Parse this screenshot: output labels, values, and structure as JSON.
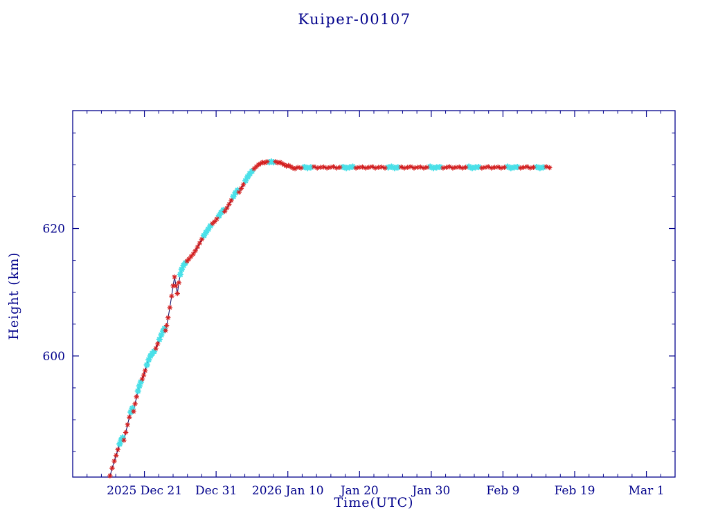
{
  "chart_data": {
    "type": "line",
    "title": "Kuiper-00107",
    "xlabel": "Time(UTC)",
    "ylabel": "Height (km)",
    "x_unit": "days, 0 = 2025 Dec 11",
    "xlim": [
      0,
      84
    ],
    "ylim": [
      581,
      638.5
    ],
    "grid": false,
    "x_ticks": [
      {
        "day": 10,
        "label": "2025 Dec 21"
      },
      {
        "day": 20,
        "label": "Dec 31"
      },
      {
        "day": 30,
        "label": "2026 Jan 10"
      },
      {
        "day": 40,
        "label": "Jan 20"
      },
      {
        "day": 50,
        "label": "Jan 30"
      },
      {
        "day": 60,
        "label": "Feb 9"
      },
      {
        "day": 70,
        "label": "Feb 19"
      },
      {
        "day": 80,
        "label": "Mar 1"
      }
    ],
    "x_minor_step": 2,
    "y_ticks": [
      {
        "value": 600,
        "label": "600"
      },
      {
        "value": 620,
        "label": "620"
      }
    ],
    "y_minor_step": 5,
    "colors": {
      "axis": "#00008b",
      "line": "#000060",
      "red_marker": "#d42020",
      "cyan_marker": "#4ae0e8"
    },
    "point_format": "[day, height_km, marker: 0=red-asterisk, 1=cyan-marker]",
    "points": [
      [
        5.2,
        581.2,
        0
      ],
      [
        5.5,
        582.4,
        0
      ],
      [
        5.8,
        583.5,
        0
      ],
      [
        6.05,
        584.4,
        0
      ],
      [
        6.3,
        585.3,
        0
      ],
      [
        6.55,
        586.2,
        1
      ],
      [
        6.75,
        586.8,
        1
      ],
      [
        6.95,
        587.2,
        1
      ],
      [
        7.15,
        586.8,
        0
      ],
      [
        7.4,
        588.0,
        0
      ],
      [
        7.65,
        589.2,
        0
      ],
      [
        7.9,
        590.4,
        0
      ],
      [
        8.1,
        591.2,
        1
      ],
      [
        8.3,
        591.8,
        1
      ],
      [
        8.5,
        591.3,
        0
      ],
      [
        8.7,
        592.5,
        0
      ],
      [
        8.9,
        593.6,
        0
      ],
      [
        9.1,
        594.5,
        1
      ],
      [
        9.3,
        595.3,
        1
      ],
      [
        9.5,
        595.9,
        1
      ],
      [
        9.7,
        596.4,
        0
      ],
      [
        9.9,
        597.0,
        0
      ],
      [
        10.1,
        597.7,
        0
      ],
      [
        10.35,
        598.6,
        1
      ],
      [
        10.6,
        599.4,
        1
      ],
      [
        10.85,
        600.0,
        1
      ],
      [
        11.1,
        600.4,
        1
      ],
      [
        11.35,
        600.7,
        1
      ],
      [
        11.6,
        601.2,
        0
      ],
      [
        11.85,
        601.9,
        0
      ],
      [
        12.1,
        602.6,
        1
      ],
      [
        12.35,
        603.3,
        1
      ],
      [
        12.6,
        603.9,
        1
      ],
      [
        12.8,
        604.3,
        1
      ],
      [
        12.95,
        604.0,
        0
      ],
      [
        13.1,
        604.8,
        0
      ],
      [
        13.3,
        606.0,
        0
      ],
      [
        13.55,
        607.6,
        0
      ],
      [
        13.8,
        609.4,
        0
      ],
      [
        14.0,
        611.0,
        0
      ],
      [
        14.2,
        612.4,
        0
      ],
      [
        14.4,
        611.0,
        0
      ],
      [
        14.6,
        609.8,
        0
      ],
      [
        14.8,
        611.5,
        0
      ],
      [
        15.0,
        612.8,
        1
      ],
      [
        15.2,
        613.6,
        1
      ],
      [
        15.45,
        614.2,
        1
      ],
      [
        15.7,
        614.6,
        1
      ],
      [
        15.95,
        614.9,
        0
      ],
      [
        16.2,
        615.2,
        0
      ],
      [
        16.5,
        615.6,
        0
      ],
      [
        16.8,
        616.0,
        0
      ],
      [
        17.1,
        616.5,
        0
      ],
      [
        17.4,
        617.1,
        0
      ],
      [
        17.7,
        617.7,
        0
      ],
      [
        18.0,
        618.3,
        0
      ],
      [
        18.3,
        618.9,
        1
      ],
      [
        18.6,
        619.4,
        1
      ],
      [
        18.9,
        619.9,
        1
      ],
      [
        19.2,
        620.4,
        1
      ],
      [
        19.5,
        620.8,
        0
      ],
      [
        19.8,
        621.1,
        0
      ],
      [
        20.1,
        621.5,
        0
      ],
      [
        20.4,
        622.0,
        1
      ],
      [
        20.7,
        622.5,
        1
      ],
      [
        21.0,
        622.9,
        1
      ],
      [
        21.2,
        622.7,
        0
      ],
      [
        21.5,
        623.2,
        0
      ],
      [
        21.8,
        623.8,
        0
      ],
      [
        22.1,
        624.4,
        0
      ],
      [
        22.4,
        625.0,
        1
      ],
      [
        22.7,
        625.6,
        1
      ],
      [
        23.0,
        626.0,
        1
      ],
      [
        23.2,
        625.7,
        0
      ],
      [
        23.5,
        626.3,
        0
      ],
      [
        23.8,
        626.9,
        0
      ],
      [
        24.1,
        627.5,
        1
      ],
      [
        24.4,
        628.1,
        1
      ],
      [
        24.7,
        628.6,
        1
      ],
      [
        25.0,
        629.0,
        1
      ],
      [
        25.3,
        629.4,
        0
      ],
      [
        25.6,
        629.7,
        0
      ],
      [
        25.9,
        630.0,
        0
      ],
      [
        26.2,
        630.2,
        0
      ],
      [
        26.5,
        630.4,
        0
      ],
      [
        26.8,
        630.3,
        0
      ],
      [
        27.1,
        630.5,
        0
      ],
      [
        27.4,
        630.4,
        1
      ],
      [
        27.7,
        630.5,
        1
      ],
      [
        28.0,
        630.4,
        1
      ],
      [
        28.3,
        630.5,
        0
      ],
      [
        28.6,
        630.3,
        0
      ],
      [
        28.9,
        630.4,
        0
      ],
      [
        29.2,
        630.2,
        0
      ],
      [
        29.5,
        630.0,
        0
      ],
      [
        29.8,
        629.8,
        0
      ],
      [
        30.1,
        629.9,
        0
      ],
      [
        30.4,
        629.7,
        0
      ],
      [
        30.7,
        629.5,
        0
      ],
      [
        31.0,
        629.4,
        0
      ],
      [
        31.4,
        629.6,
        0
      ],
      [
        31.85,
        629.5,
        0
      ],
      [
        32.3,
        629.65,
        1
      ],
      [
        32.75,
        629.5,
        1
      ],
      [
        33.2,
        629.6,
        1
      ],
      [
        33.65,
        629.7,
        0
      ],
      [
        34.1,
        629.5,
        0
      ],
      [
        34.55,
        629.6,
        0
      ],
      [
        35.0,
        629.65,
        0
      ],
      [
        35.45,
        629.5,
        0
      ],
      [
        35.9,
        629.6,
        0
      ],
      [
        36.35,
        629.7,
        0
      ],
      [
        36.8,
        629.5,
        0
      ],
      [
        37.25,
        629.6,
        0
      ],
      [
        37.7,
        629.65,
        1
      ],
      [
        38.15,
        629.5,
        1
      ],
      [
        38.6,
        629.6,
        1
      ],
      [
        39.05,
        629.7,
        1
      ],
      [
        39.5,
        629.5,
        0
      ],
      [
        39.95,
        629.6,
        0
      ],
      [
        40.4,
        629.65,
        0
      ],
      [
        40.85,
        629.5,
        0
      ],
      [
        41.3,
        629.6,
        0
      ],
      [
        41.75,
        629.7,
        0
      ],
      [
        42.2,
        629.5,
        0
      ],
      [
        42.65,
        629.6,
        0
      ],
      [
        43.1,
        629.65,
        0
      ],
      [
        43.55,
        629.5,
        0
      ],
      [
        44.0,
        629.6,
        1
      ],
      [
        44.45,
        629.7,
        1
      ],
      [
        44.9,
        629.5,
        1
      ],
      [
        45.35,
        629.6,
        1
      ],
      [
        45.8,
        629.65,
        0
      ],
      [
        46.25,
        629.5,
        0
      ],
      [
        46.7,
        629.6,
        0
      ],
      [
        47.15,
        629.7,
        0
      ],
      [
        47.6,
        629.5,
        0
      ],
      [
        48.05,
        629.6,
        0
      ],
      [
        48.5,
        629.65,
        0
      ],
      [
        48.95,
        629.5,
        0
      ],
      [
        49.4,
        629.6,
        0
      ],
      [
        49.85,
        629.7,
        1
      ],
      [
        50.3,
        629.5,
        1
      ],
      [
        50.75,
        629.6,
        1
      ],
      [
        51.2,
        629.65,
        1
      ],
      [
        51.65,
        629.5,
        0
      ],
      [
        52.1,
        629.6,
        0
      ],
      [
        52.55,
        629.7,
        0
      ],
      [
        53.0,
        629.5,
        0
      ],
      [
        53.45,
        629.6,
        0
      ],
      [
        53.9,
        629.65,
        0
      ],
      [
        54.35,
        629.5,
        0
      ],
      [
        54.8,
        629.6,
        0
      ],
      [
        55.25,
        629.7,
        1
      ],
      [
        55.7,
        629.5,
        1
      ],
      [
        56.15,
        629.6,
        1
      ],
      [
        56.6,
        629.65,
        1
      ],
      [
        57.05,
        629.5,
        0
      ],
      [
        57.5,
        629.6,
        0
      ],
      [
        57.95,
        629.7,
        0
      ],
      [
        58.4,
        629.5,
        0
      ],
      [
        58.85,
        629.6,
        0
      ],
      [
        59.3,
        629.65,
        0
      ],
      [
        59.75,
        629.5,
        0
      ],
      [
        60.2,
        629.6,
        0
      ],
      [
        60.65,
        629.7,
        1
      ],
      [
        61.1,
        629.5,
        1
      ],
      [
        61.55,
        629.6,
        1
      ],
      [
        62.0,
        629.65,
        1
      ],
      [
        62.45,
        629.5,
        0
      ],
      [
        62.9,
        629.6,
        0
      ],
      [
        63.35,
        629.7,
        0
      ],
      [
        63.8,
        629.5,
        0
      ],
      [
        64.25,
        629.6,
        0
      ],
      [
        64.7,
        629.65,
        1
      ],
      [
        65.15,
        629.5,
        1
      ],
      [
        65.6,
        629.6,
        1
      ],
      [
        66.05,
        629.7,
        0
      ],
      [
        66.5,
        629.55,
        0
      ]
    ]
  }
}
